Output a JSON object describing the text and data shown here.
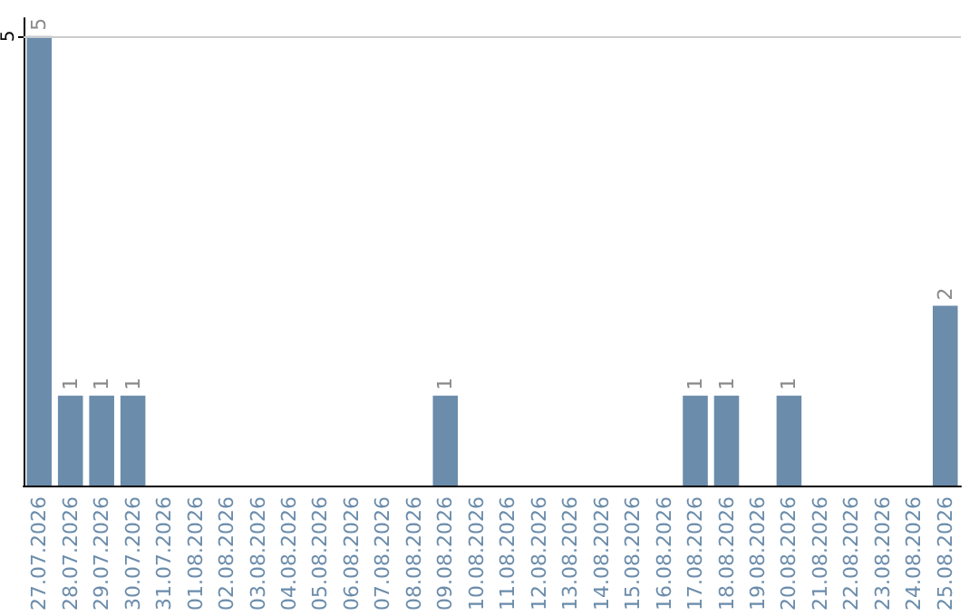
{
  "chart_data": {
    "type": "bar",
    "categories": [
      "27.07.2026",
      "28.07.2026",
      "29.07.2026",
      "30.07.2026",
      "31.07.2026",
      "01.08.2026",
      "02.08.2026",
      "03.08.2026",
      "04.08.2026",
      "05.08.2026",
      "06.08.2026",
      "07.08.2026",
      "08.08.2026",
      "09.08.2026",
      "10.08.2026",
      "11.08.2026",
      "12.08.2026",
      "13.08.2026",
      "14.08.2026",
      "15.08.2026",
      "16.08.2026",
      "17.08.2026",
      "18.08.2026",
      "19.08.2026",
      "20.08.2026",
      "21.08.2026",
      "22.08.2026",
      "23.08.2026",
      "24.08.2026",
      "25.08.2026"
    ],
    "values": [
      5,
      1,
      1,
      1,
      0,
      0,
      0,
      0,
      0,
      0,
      0,
      0,
      0,
      1,
      0,
      0,
      0,
      0,
      0,
      0,
      0,
      1,
      1,
      0,
      1,
      0,
      0,
      0,
      0,
      2
    ],
    "value_labels": [
      "5",
      "1",
      "1",
      "1",
      null,
      null,
      null,
      null,
      null,
      null,
      null,
      null,
      null,
      "1",
      null,
      null,
      null,
      null,
      null,
      null,
      null,
      "1",
      "1",
      null,
      "1",
      null,
      null,
      null,
      null,
      "2"
    ],
    "color": "#6b8cab",
    "ylim": [
      0,
      5.2
    ],
    "yticks": [
      5
    ],
    "grid": "y"
  }
}
